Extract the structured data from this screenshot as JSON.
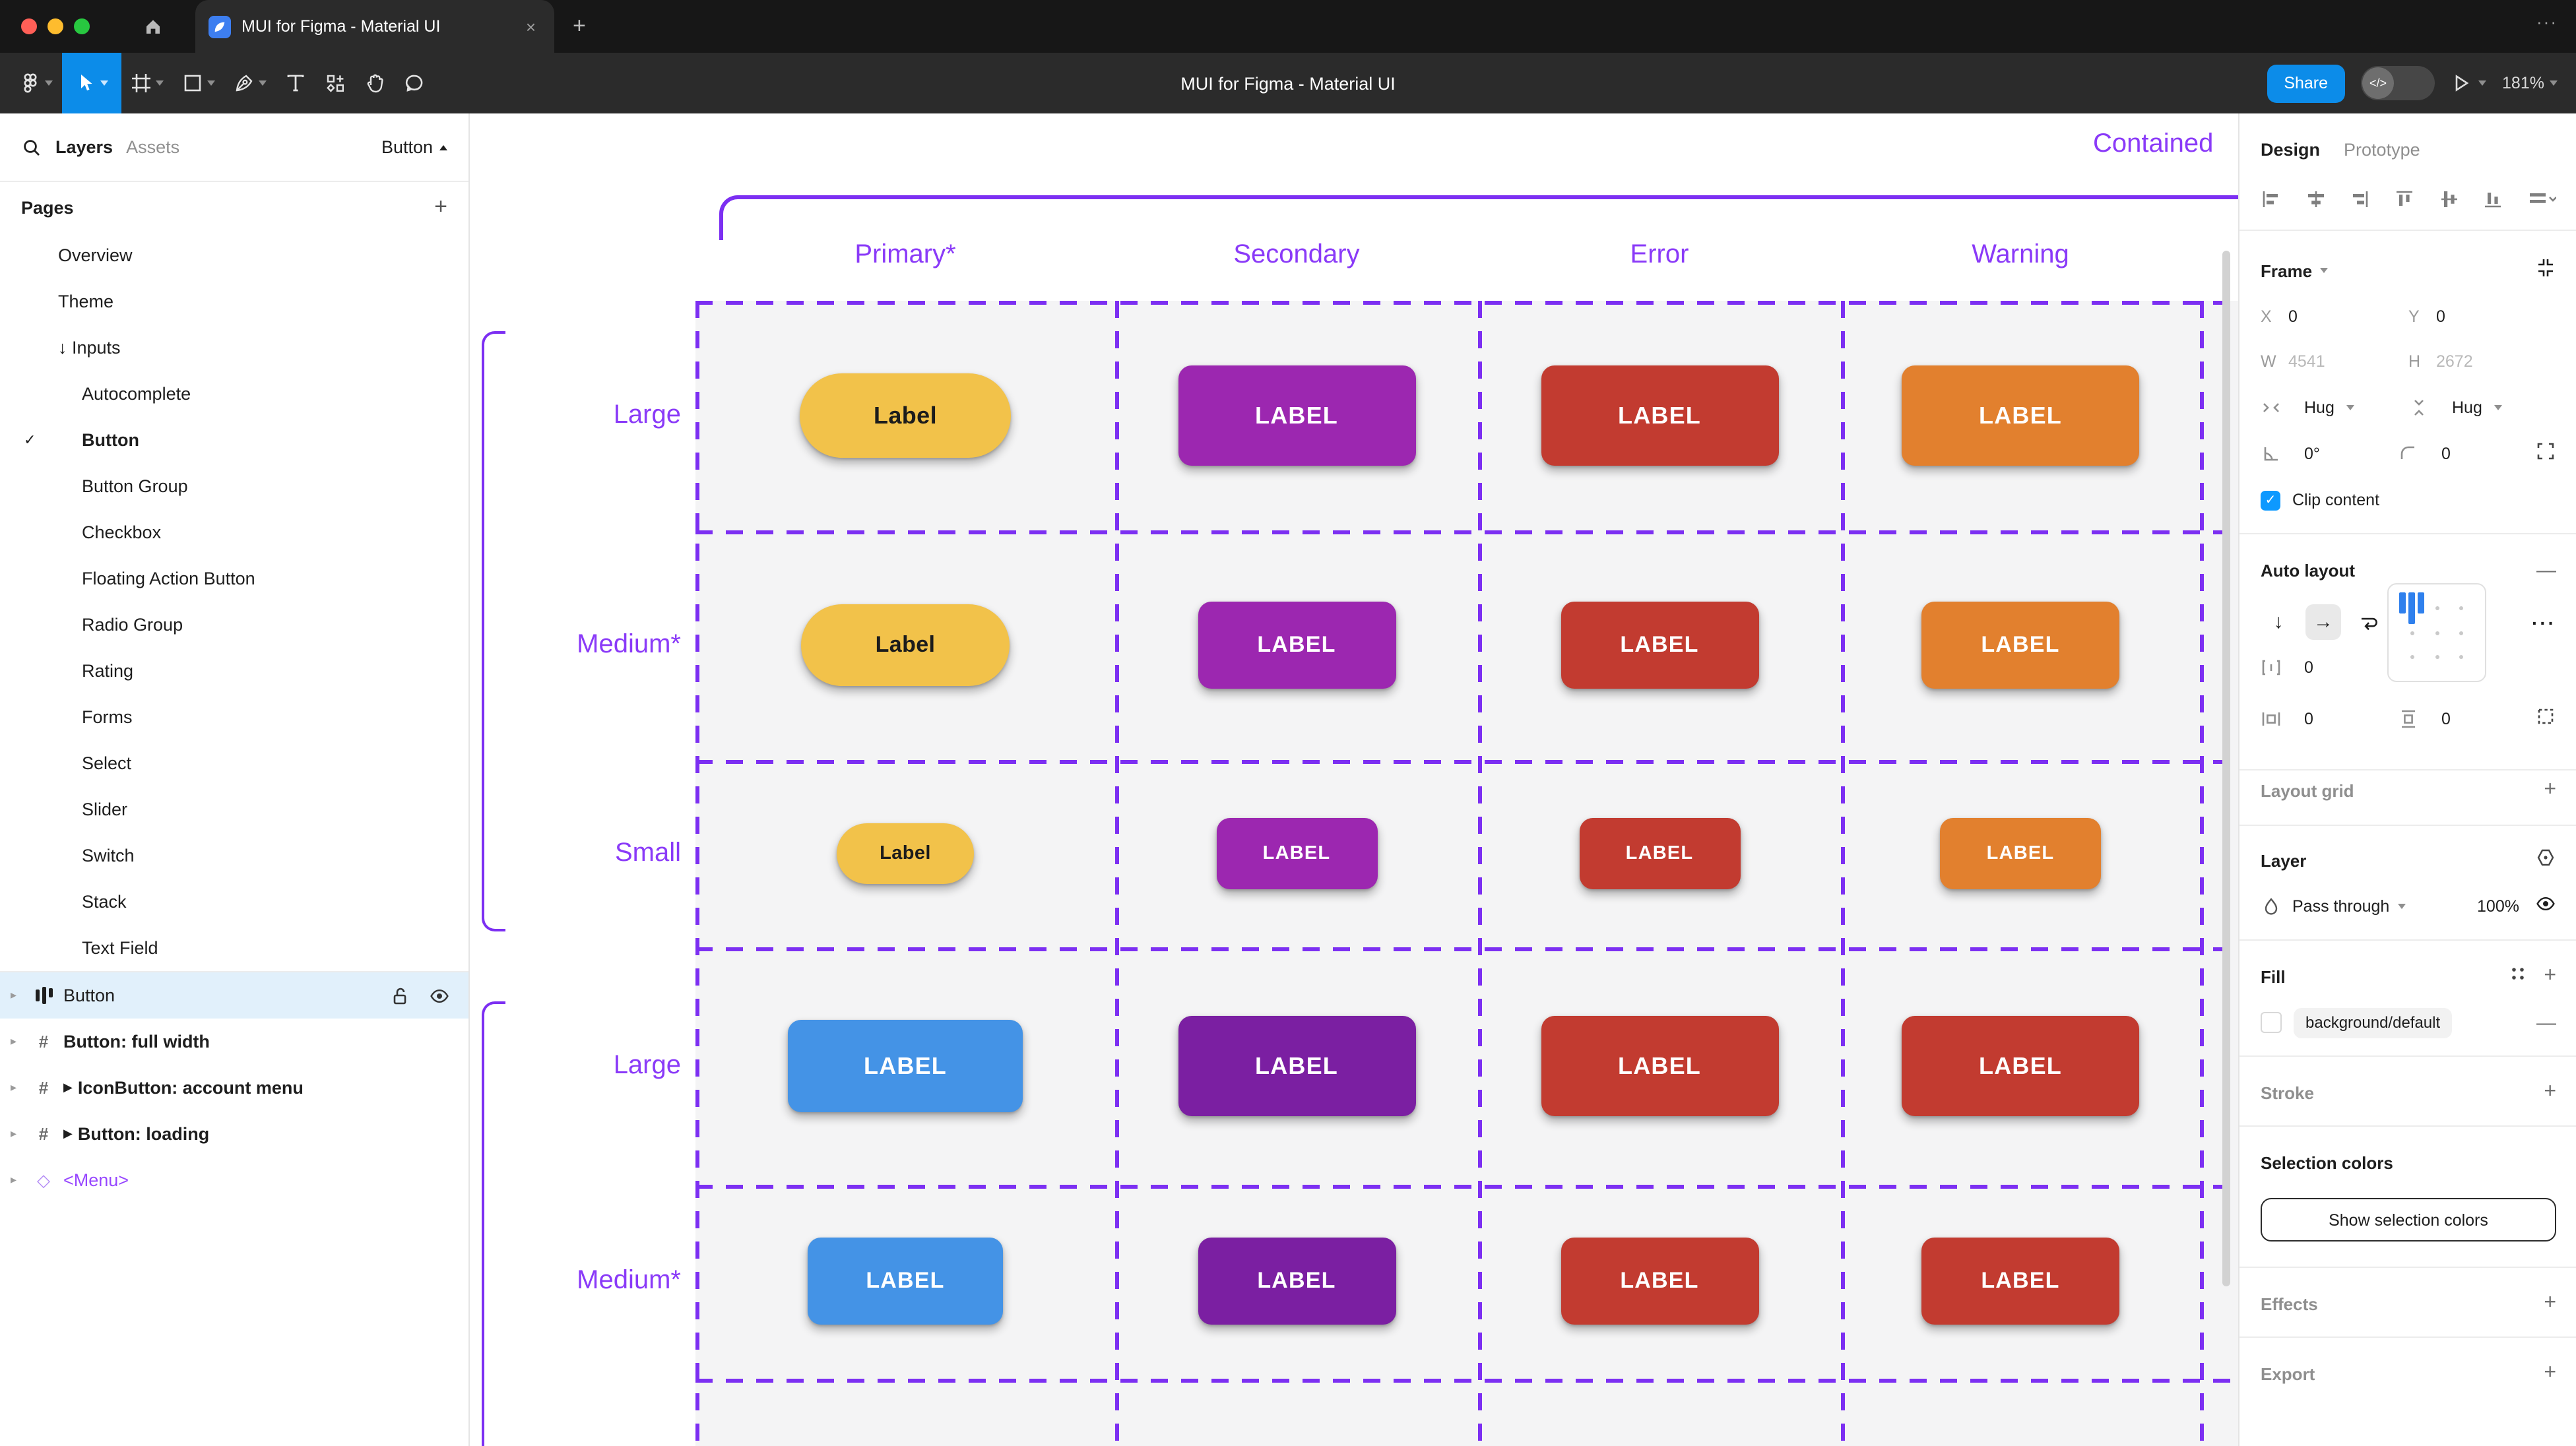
{
  "window": {
    "tab_title": "MUI for Figma - Material UI",
    "close_icon": "×",
    "new_tab_icon": "+",
    "menu_icon": "···"
  },
  "toolbar": {
    "document_title": "MUI for Figma - Material UI",
    "share_label": "Share",
    "zoom_level": "181%",
    "tools": [
      "figma-menu",
      "move-tool",
      "frame-tool",
      "shape-tool",
      "pen-tool",
      "text-tool",
      "actions-tool",
      "hand-tool",
      "comment-tool"
    ]
  },
  "left_panel": {
    "tabs": {
      "layers": "Layers",
      "assets": "Assets"
    },
    "component_selector": "Button",
    "pages_header": "Pages",
    "add_page_icon": "+",
    "pages": [
      {
        "label": "Overview",
        "indent": 1
      },
      {
        "label": "Theme",
        "indent": 1
      },
      {
        "label": "Inputs",
        "indent": 1,
        "prefix": "↓"
      },
      {
        "label": "Autocomplete",
        "indent": 2
      },
      {
        "label": "Button",
        "indent": 2,
        "checked": true,
        "bold": true
      },
      {
        "label": "Button Group",
        "indent": 2
      },
      {
        "label": "Checkbox",
        "indent": 2
      },
      {
        "label": "Floating Action Button",
        "indent": 2
      },
      {
        "label": "Radio Group",
        "indent": 2
      },
      {
        "label": "Rating",
        "indent": 2
      },
      {
        "label": "Forms",
        "indent": 2
      },
      {
        "label": "Select",
        "indent": 2
      },
      {
        "label": "Slider",
        "indent": 2
      },
      {
        "label": "Switch",
        "indent": 2
      },
      {
        "label": "Stack",
        "indent": 2
      },
      {
        "label": "Text Field",
        "indent": 2
      }
    ],
    "layers": [
      {
        "label": "Button",
        "icon": "auto-layout",
        "selected": true
      },
      {
        "label": "Button: full width",
        "icon": "frame",
        "bold": true
      },
      {
        "label": "IconButton: account menu",
        "icon": "frame",
        "bold": true,
        "play": true
      },
      {
        "label": "Button: loading",
        "icon": "frame",
        "bold": true,
        "play": true
      },
      {
        "label": "<Menu>",
        "icon": "diamond",
        "purple": true
      }
    ]
  },
  "canvas": {
    "frame_title": "Contained",
    "column_headers": [
      "Primary*",
      "Secondary",
      "Error",
      "Warning"
    ],
    "accent_purple": "#7c2ff2",
    "rows": [
      {
        "label": "Large",
        "buttons": [
          {
            "label": "Label",
            "bg": "#F2C24A",
            "fg": "#1c1c1c",
            "shape": "pill"
          },
          {
            "label": "LABEL",
            "bg": "#9C27B0",
            "fg": "#ffffff"
          },
          {
            "label": "LABEL",
            "bg": "#C23B30",
            "fg": "#ffffff"
          },
          {
            "label": "LABEL",
            "bg": "#E2802E",
            "fg": "#ffffff"
          }
        ]
      },
      {
        "label": "Medium*",
        "buttons": [
          {
            "label": "Label",
            "bg": "#F2C24A",
            "fg": "#1c1c1c",
            "shape": "pill"
          },
          {
            "label": "LABEL",
            "bg": "#9C27B0",
            "fg": "#ffffff"
          },
          {
            "label": "LABEL",
            "bg": "#C23B30",
            "fg": "#ffffff"
          },
          {
            "label": "LABEL",
            "bg": "#E2802E",
            "fg": "#ffffff"
          }
        ]
      },
      {
        "label": "Small",
        "buttons": [
          {
            "label": "Label",
            "bg": "#F2C24A",
            "fg": "#1c1c1c",
            "shape": "pill"
          },
          {
            "label": "LABEL",
            "bg": "#9C27B0",
            "fg": "#ffffff"
          },
          {
            "label": "LABEL",
            "bg": "#C23B30",
            "fg": "#ffffff"
          },
          {
            "label": "LABEL",
            "bg": "#E2802E",
            "fg": "#ffffff"
          }
        ]
      },
      {
        "label": "Large",
        "buttons": [
          {
            "label": "LABEL",
            "bg": "#4493E6",
            "fg": "#ffffff"
          },
          {
            "label": "LABEL",
            "bg": "#7B1FA2",
            "fg": "#ffffff"
          },
          {
            "label": "LABEL",
            "bg": "#C23B30",
            "fg": "#ffffff"
          },
          {
            "label": "LABEL",
            "bg": "#C23B30",
            "fg": "#ffffff"
          }
        ]
      },
      {
        "label": "Medium*",
        "buttons": [
          {
            "label": "LABEL",
            "bg": "#4493E6",
            "fg": "#ffffff"
          },
          {
            "label": "LABEL",
            "bg": "#7B1FA2",
            "fg": "#ffffff"
          },
          {
            "label": "LABEL",
            "bg": "#C23B30",
            "fg": "#ffffff"
          },
          {
            "label": "LABEL",
            "bg": "#C23B30",
            "fg": "#ffffff"
          }
        ]
      }
    ]
  },
  "right_panel": {
    "tabs": {
      "design": "Design",
      "prototype": "Prototype"
    },
    "alignment_icons": [
      "align-left",
      "align-horizontal-center",
      "align-right",
      "align-top",
      "align-vertical-center",
      "align-bottom",
      "distribute-spacing"
    ],
    "frame": {
      "title": "Frame",
      "x_label": "X",
      "x_value": "0",
      "y_label": "Y",
      "y_value": "0",
      "w_label": "W",
      "w_value": "4541",
      "h_label": "H",
      "h_value": "2672",
      "hug_h": "Hug",
      "hug_v": "Hug",
      "rotation": "0°",
      "corner_radius": "0",
      "clip_label": "Clip content"
    },
    "auto_layout": {
      "title": "Auto layout",
      "gap": "0",
      "padding_h": "0",
      "padding_v": "0"
    },
    "layout_grid_title": "Layout grid",
    "layer": {
      "title": "Layer",
      "blend_mode": "Pass through",
      "opacity": "100%"
    },
    "fill": {
      "title": "Fill",
      "token": "background/default"
    },
    "stroke_title": "Stroke",
    "selection_colors": {
      "title": "Selection colors",
      "button_label": "Show selection colors"
    },
    "effects_title": "Effects",
    "export_title": "Export",
    "accent_blue": "#0d99ff"
  },
  "icons": {
    "check": "✓",
    "caret_right": "▸",
    "play": "▶",
    "diamond": "◇",
    "arrow_down": "↓",
    "arrow_right": "→",
    "more_dots": "···"
  }
}
